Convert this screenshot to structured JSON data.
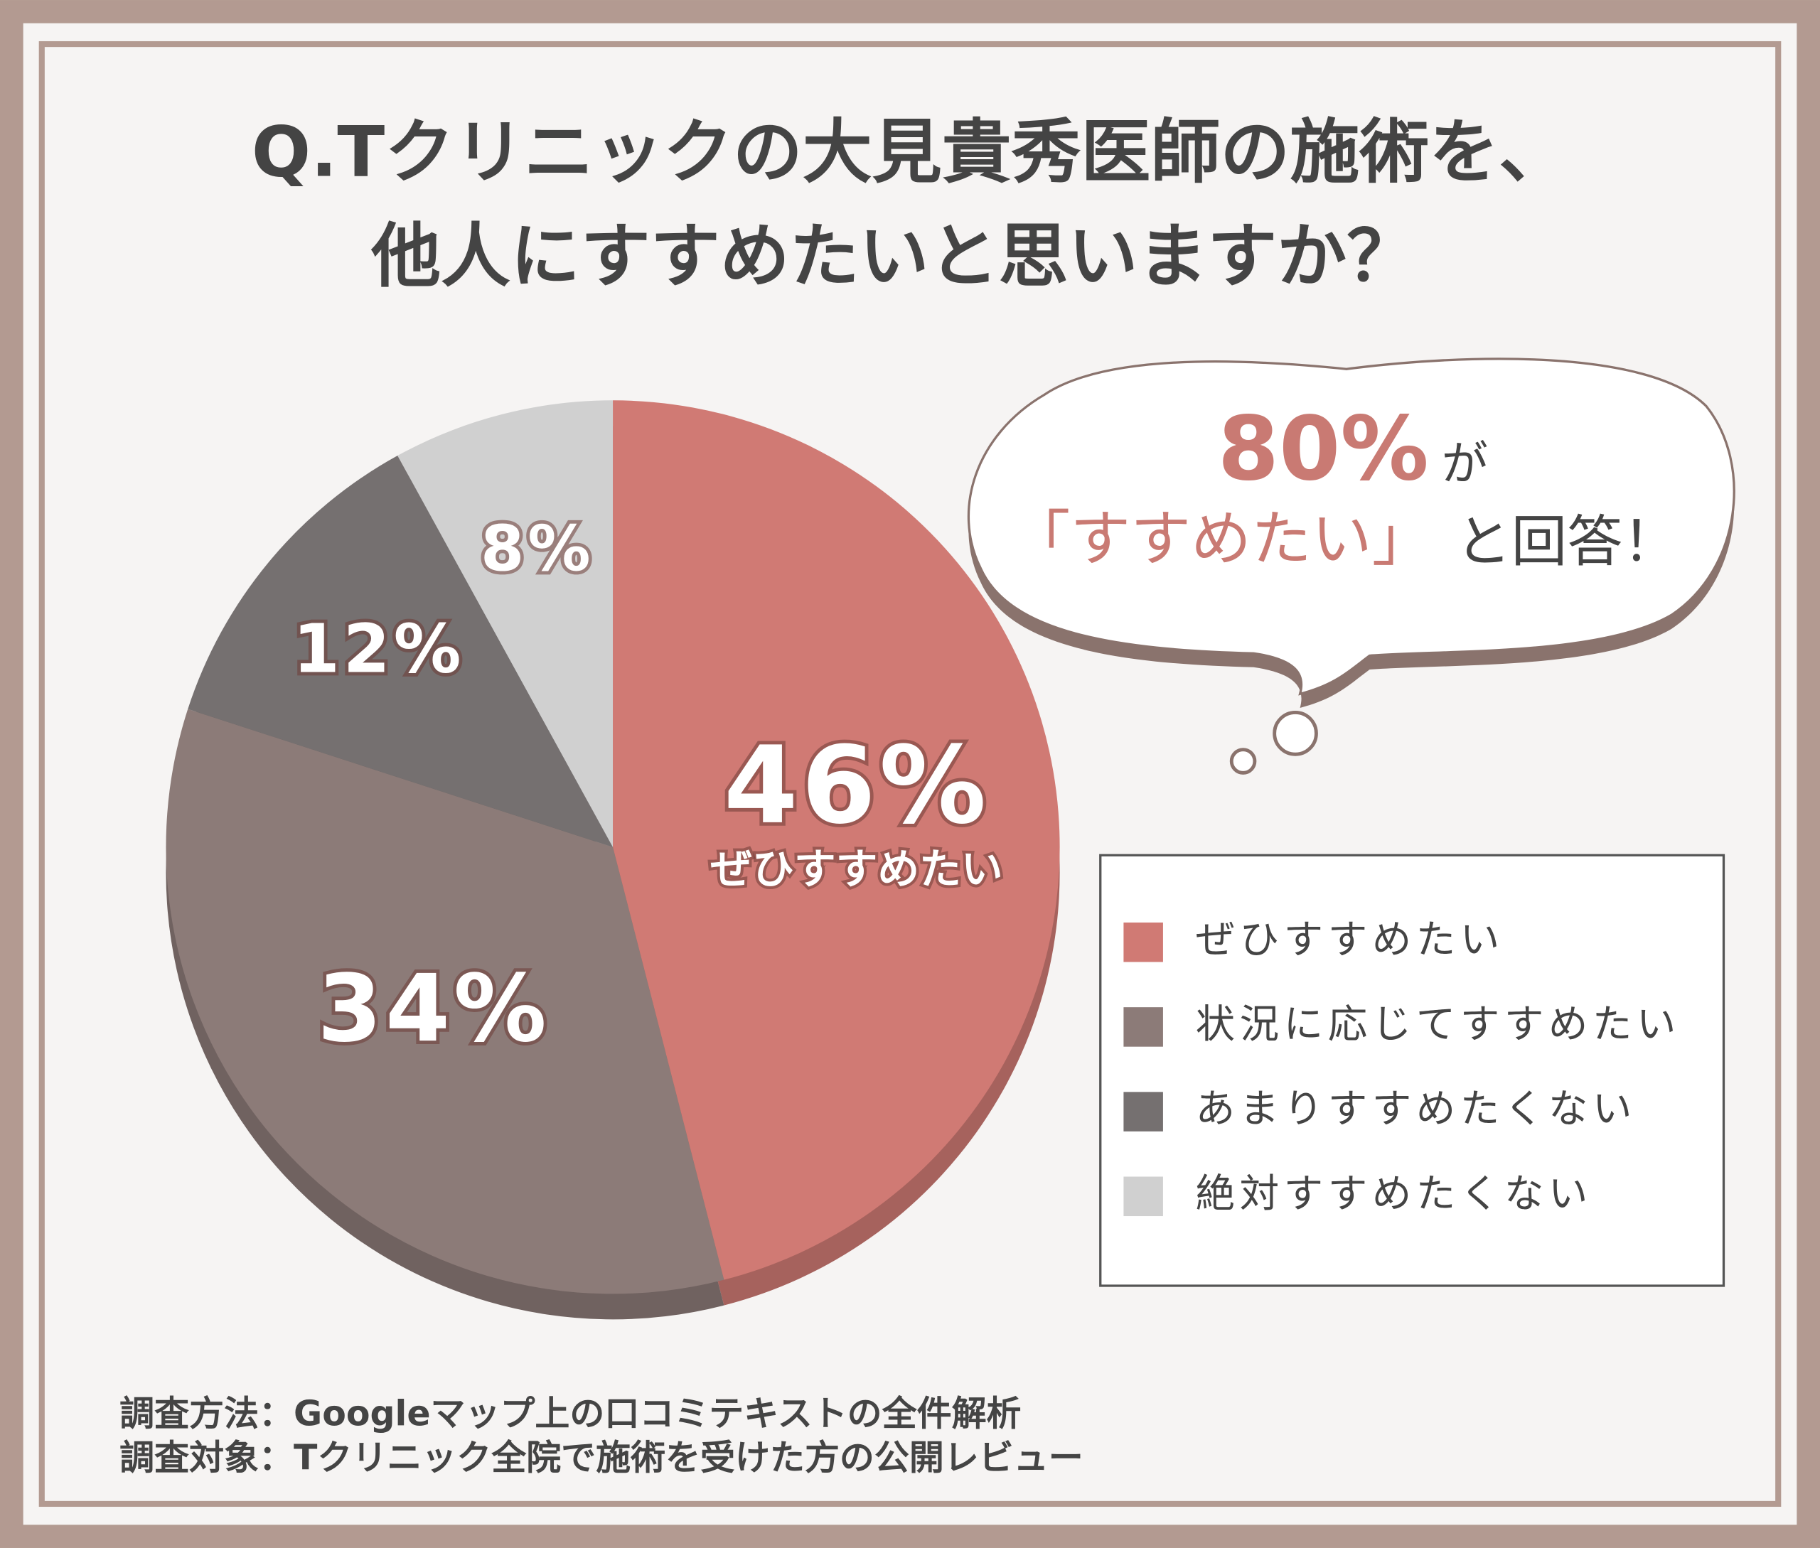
{
  "chart_data": {
    "type": "pie",
    "title": [
      "Q.Tクリニックの大見貴秀医師の施術を、",
      "他人にすすめたいと思いますか？"
    ],
    "categories": [
      "ぜひすすめたい",
      "状況に応じてすすめたい",
      "あまりすすめたくない",
      "絶対すすめたくない"
    ],
    "values": [
      46,
      34,
      12,
      8
    ],
    "value_labels": [
      "46%",
      "34%",
      "12%",
      "8%"
    ],
    "colors": [
      "#d07a74",
      "#8c7b78",
      "#757070",
      "#d0d0d0"
    ],
    "callout": {
      "highlight": "80%",
      "particle": "が",
      "quote": "「すすめたい」",
      "tail": "と回答！"
    },
    "notes": [
      "調査方法：Googleマップ上の口コミテキストの全件解析",
      "調査対象：Tクリニック全院で施術を受けた方の公開レビュー"
    ]
  }
}
